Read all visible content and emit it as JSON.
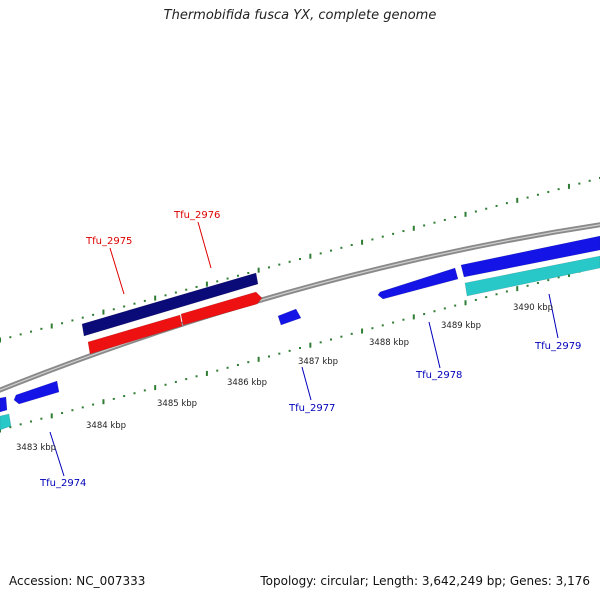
{
  "title": "Thermobifida fusca YX, complete genome",
  "footer": {
    "accession": "Accession: NC_007333",
    "summary": "Topology: circular; Length: 3,642,249 bp; Genes: 3,176"
  },
  "colors": {
    "backbone": "#8a8a8a",
    "tick": "#2e7d32",
    "forward_gene": "#1414e6",
    "forward_gene_dark": "#0a0a78",
    "reverse_gene": "#ee1111",
    "cyan_gene": "#28c8c8",
    "label_blue": "#0000bb",
    "label_red": "#dd0000"
  },
  "scale_labels": [
    {
      "text": "3483 kbp",
      "kbp": 3483
    },
    {
      "text": "3484 kbp",
      "kbp": 3484
    },
    {
      "text": "3485 kbp",
      "kbp": 3485
    },
    {
      "text": "3486 kbp",
      "kbp": 3486
    },
    {
      "text": "3487 kbp",
      "kbp": 3487
    },
    {
      "text": "3488 kbp",
      "kbp": 3488
    },
    {
      "text": "3489 kbp",
      "kbp": 3489
    },
    {
      "text": "3490 kbp",
      "kbp": 3490
    }
  ],
  "gene_labels": [
    {
      "id": "Tfu_2974",
      "text": "Tfu_2974",
      "color": "blue"
    },
    {
      "id": "Tfu_2975",
      "text": "Tfu_2975",
      "color": "red"
    },
    {
      "id": "Tfu_2976",
      "text": "Tfu_2976",
      "color": "red"
    },
    {
      "id": "Tfu_2977",
      "text": "Tfu_2977",
      "color": "blue"
    },
    {
      "id": "Tfu_2978",
      "text": "Tfu_2978",
      "color": "blue"
    },
    {
      "id": "Tfu_2979",
      "text": "Tfu_2979",
      "color": "blue"
    }
  ]
}
